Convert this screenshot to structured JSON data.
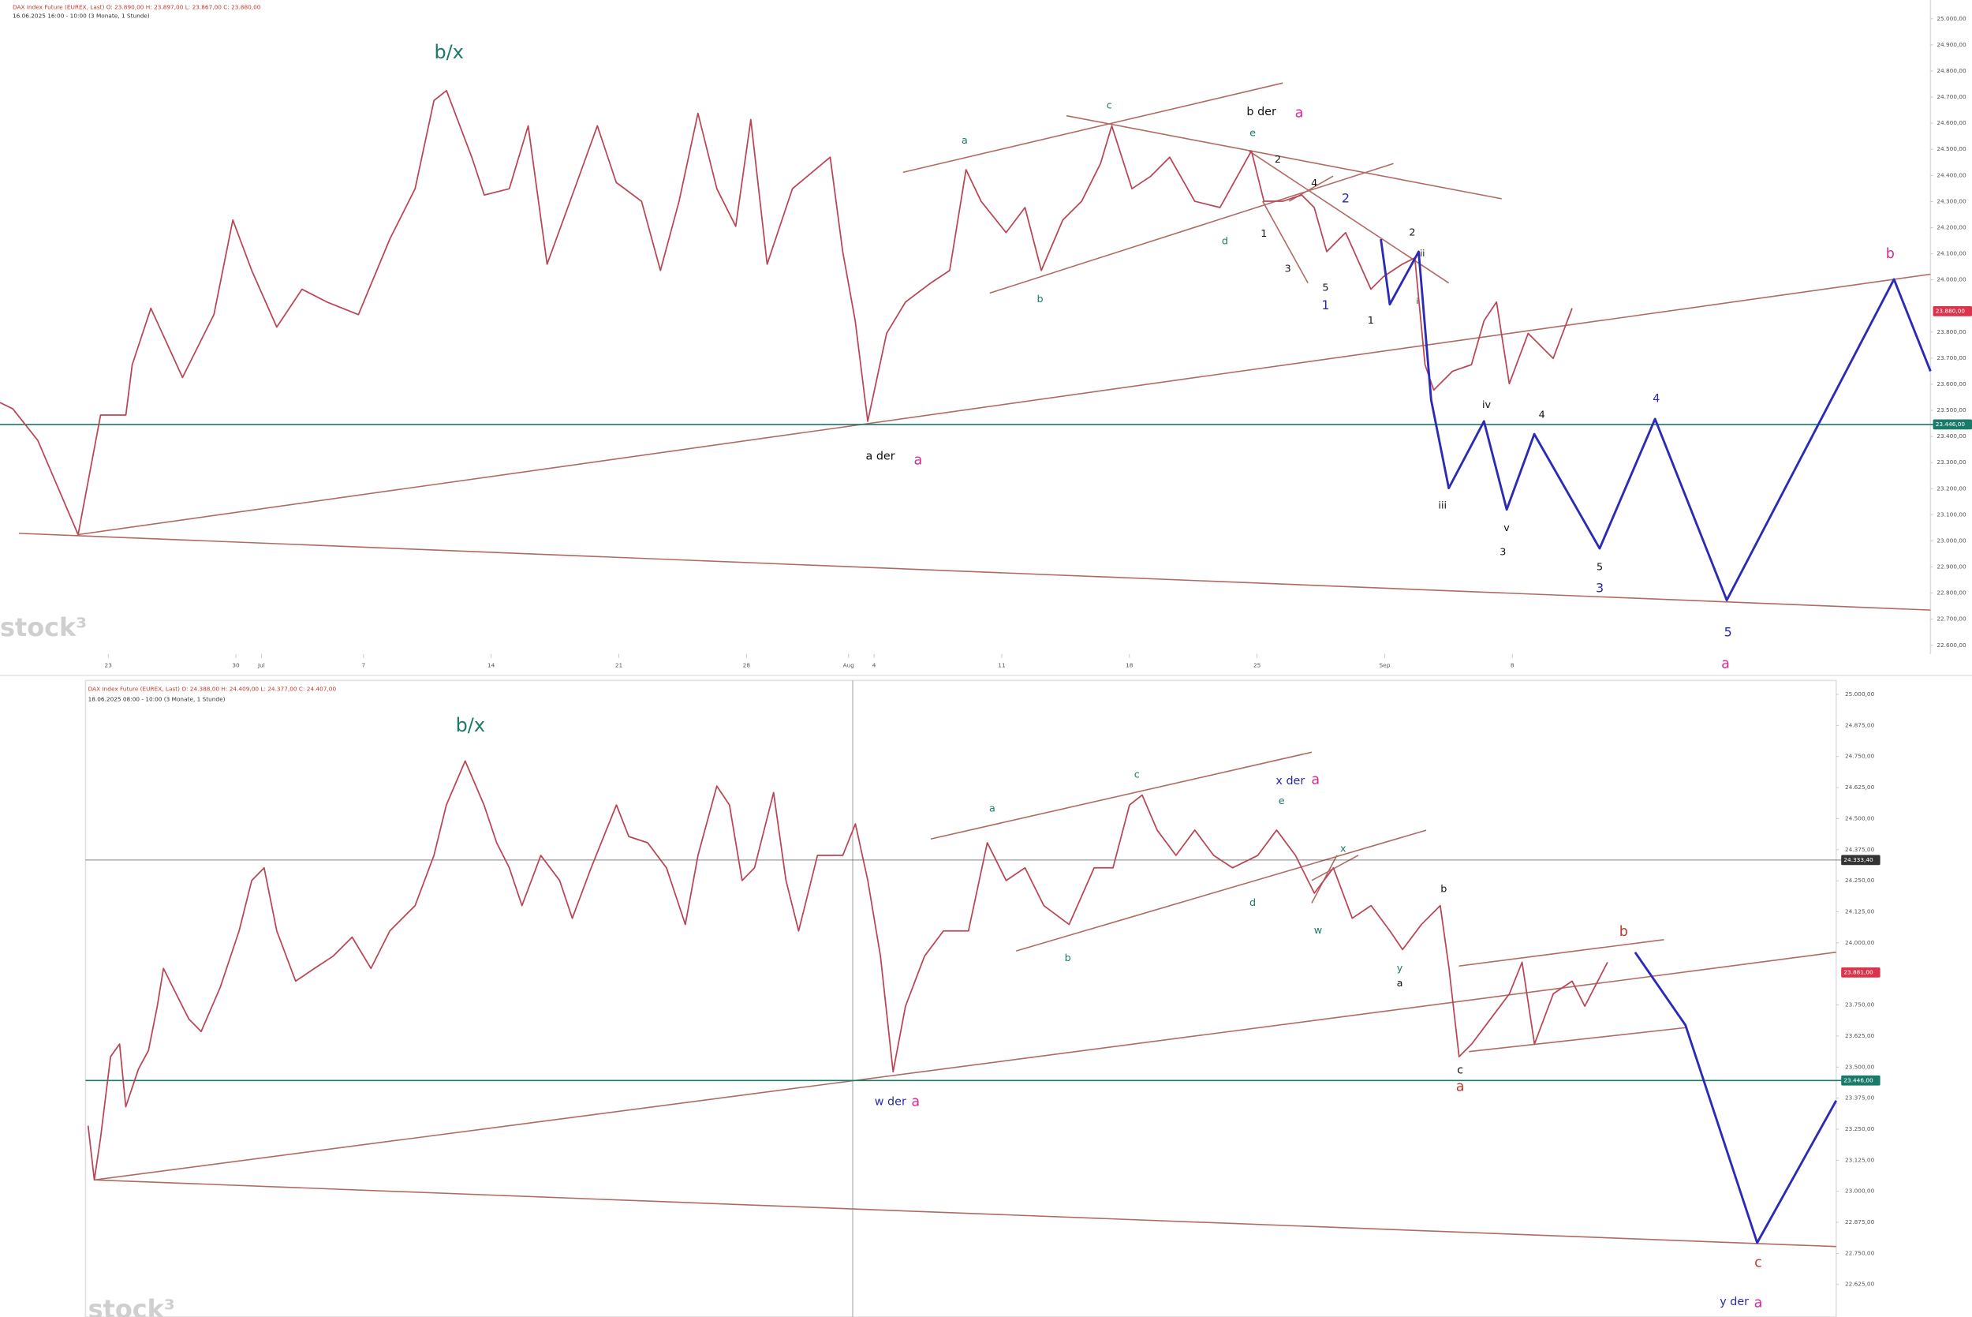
{
  "chart_data": [
    {
      "type": "line",
      "title": "DAX Index Future (EUREX, Last)   O: 23.890,00   H: 23.897,00   L: 23.867,00   C: 23.880,00",
      "subtitle": "16.06.2025 16:00 - 10:00  (3 Monate, 1 Stunde)",
      "watermark": "stock³",
      "xlim": [
        -4.24,
        71.38
      ],
      "ylim": [
        22494,
        25072
      ],
      "xticks": [
        {
          "value": 0,
          "label": "23"
        },
        {
          "value": 5,
          "label": "30"
        },
        {
          "value": 6,
          "label": "Jul"
        },
        {
          "value": 10,
          "label": "7"
        },
        {
          "value": 15,
          "label": "14"
        },
        {
          "value": 20,
          "label": "21"
        },
        {
          "value": 25,
          "label": "28"
        },
        {
          "value": 29,
          "label": "Aug"
        },
        {
          "value": 30,
          "label": "4"
        },
        {
          "value": 35,
          "label": "11"
        },
        {
          "value": 40,
          "label": "18"
        },
        {
          "value": 45,
          "label": "25"
        },
        {
          "value": 50,
          "label": "Sep"
        },
        {
          "value": 55,
          "label": "8"
        }
      ],
      "yticks": [
        {
          "value": 25000,
          "label": "25.000,00"
        },
        {
          "value": 24900,
          "label": "24.900,00"
        },
        {
          "value": 24800,
          "label": "24.800,00"
        },
        {
          "value": 24700,
          "label": "24.700,00"
        },
        {
          "value": 24600,
          "label": "24.600,00"
        },
        {
          "value": 24500,
          "label": "24.500,00"
        },
        {
          "value": 24400,
          "label": "24.400,00"
        },
        {
          "value": 24300,
          "label": "24.300,00"
        },
        {
          "value": 24200,
          "label": "24.200,00"
        },
        {
          "value": 24100,
          "label": "24.100,00"
        },
        {
          "value": 24000,
          "label": "24.000,00"
        },
        {
          "value": 23800,
          "label": "23.800,00"
        },
        {
          "value": 23700,
          "label": "23.700,00"
        },
        {
          "value": 23600,
          "label": "23.600,00"
        },
        {
          "value": 23500,
          "label": "23.500,00"
        },
        {
          "value": 23400,
          "label": "23.400,00"
        },
        {
          "value": 23300,
          "label": "23.300,00"
        },
        {
          "value": 23200,
          "label": "23.200,00"
        },
        {
          "value": 23100,
          "label": "23.100,00"
        },
        {
          "value": 23000,
          "label": "23.000,00"
        },
        {
          "value": 22900,
          "label": "22.900,00"
        },
        {
          "value": 22800,
          "label": "22.800,00"
        },
        {
          "value": 22700,
          "label": "22.700,00"
        },
        {
          "value": 22600,
          "label": "22.600,00"
        }
      ],
      "levels": [
        {
          "value": 23880,
          "label": "23.880,00",
          "color": "#d9344b",
          "line": false
        },
        {
          "value": 23446,
          "label": "23.446,00",
          "color": "#1a7a6a",
          "line": true
        }
      ],
      "series": [
        {
          "color": "#b94657",
          "x": [
            -4.24,
            -3.74,
            -2.76,
            -1.18,
            -0.3,
            0.69,
            0.94,
            1.67,
            2.91,
            4.14,
            4.88,
            5.62,
            6.6,
            7.59,
            8.57,
            9.8,
            11.03,
            12.02,
            12.76,
            13.25,
            14.24,
            14.73,
            15.71,
            16.45,
            17.19,
            18.18,
            19.16,
            19.9,
            20.89,
            21.63,
            22.36,
            23.1,
            23.84,
            24.58,
            25.17,
            25.81,
            26.8,
            28.28,
            28.77,
            29.26,
            29.75,
            30.49,
            31.23,
            32.22,
            32.96,
            33.6,
            34.19,
            35.17,
            35.91,
            36.55,
            37.39,
            38.13,
            38.87,
            39.31,
            40.1,
            40.84,
            41.58,
            42.56,
            43.55,
            44.78,
            45.27,
            46.01,
            46.75,
            47.24,
            47.73,
            48.47,
            49.46,
            49.95,
            50.69,
            51.18,
            51.58,
            51.92,
            52.66,
            53.4,
            53.89,
            54.38,
            54.88,
            55.62,
            56.6,
            57.34
          ],
          "values": [
            23530,
            23506,
            23385,
            23024,
            23482,
            23482,
            23675,
            23891,
            23626,
            23867,
            24229,
            24036,
            23819,
            23964,
            23915,
            23867,
            24156,
            24349,
            24687,
            24725,
            24470,
            24325,
            24349,
            24590,
            24060,
            24325,
            24590,
            24373,
            24301,
            24036,
            24301,
            24638,
            24349,
            24205,
            24614,
            24060,
            24349,
            24470,
            24108,
            23843,
            23458,
            23795,
            23915,
            23988,
            24036,
            24422,
            24301,
            24181,
            24277,
            24036,
            24229,
            24301,
            24446,
            24590,
            24349,
            24397,
            24470,
            24301,
            24277,
            24494,
            24301,
            24301,
            24325,
            24277,
            24108,
            24181,
            23964,
            24012,
            24060,
            24084,
            23675,
            23578,
            23650,
            23675,
            23843,
            23915,
            23602,
            23795,
            23699,
            23891
          ]
        },
        {
          "color": "#2b2bb5",
          "x": [
            49.85,
            50.2,
            51.33,
            51.82,
            52.51,
            53.89,
            54.78,
            55.86,
            58.42,
            60.59,
            63.4,
            69.95,
            71.38
          ],
          "values": [
            24156,
            23906,
            24108,
            23540,
            23202,
            23458,
            23120,
            23409,
            22971,
            23467,
            22773,
            24002,
            23650
          ]
        }
      ],
      "annotations": [
        "b/x",
        "a",
        "c",
        "b der",
        "a",
        "e",
        "2",
        "4",
        "2",
        "2",
        "ii",
        "d",
        "1",
        "3",
        "5",
        "1",
        "i",
        "1",
        "b",
        "b",
        "iv",
        "4",
        "4",
        "a der",
        "a",
        "iii",
        "v",
        "3",
        "5",
        "3",
        "5",
        "a"
      ]
    },
    {
      "type": "line",
      "title": "DAX Index Future (EUREX, Last)   O: 24.388,00   H: 24.409,00   L: 24.377,00   C: 24.407,00",
      "subtitle": "18.06.2025 08:00 - 10:00  (3 Monate, 1 Stunde)",
      "watermark": "stock³",
      "xlim": [
        -1.52,
        66.31
      ],
      "ylim": [
        22494,
        25056
      ],
      "yticks": [
        {
          "value": 25000,
          "label": "25.000,00"
        },
        {
          "value": 24875,
          "label": "24.875,00"
        },
        {
          "value": 24750,
          "label": "24.750,00"
        },
        {
          "value": 24625,
          "label": "24.625,00"
        },
        {
          "value": 24500,
          "label": "24.500,00"
        },
        {
          "value": 24375,
          "label": "24.375,00"
        },
        {
          "value": 24250,
          "label": "24.250,00"
        },
        {
          "value": 24125,
          "label": "24.125,00"
        },
        {
          "value": 24000,
          "label": "24.000,00"
        },
        {
          "value": 23750,
          "label": "23.750,00"
        },
        {
          "value": 23625,
          "label": "23.625,00"
        },
        {
          "value": 23500,
          "label": "23.500,00"
        },
        {
          "value": 23375,
          "label": "23.375,00"
        },
        {
          "value": 23250,
          "label": "23.250,00"
        },
        {
          "value": 23125,
          "label": "23.125,00"
        },
        {
          "value": 23000,
          "label": "23.000,00"
        },
        {
          "value": 22875,
          "label": "22.875,00"
        },
        {
          "value": 22750,
          "label": "22.750,00"
        },
        {
          "value": 22625,
          "label": "22.625,00"
        }
      ],
      "levels": [
        {
          "value": 24333.4,
          "label": "24.333,40",
          "color": "#333333",
          "line": true
        },
        {
          "value": 23881,
          "label": "23.881,00",
          "color": "#d9344b",
          "line": false
        },
        {
          "value": 23446,
          "label": "23.446,00",
          "color": "#1a7a6a",
          "line": true
        }
      ],
      "series": [
        {
          "color": "#b94657",
          "x": [
            -1.42,
            -1.18,
            -0.94,
            -0.55,
            -0.2,
            0.04,
            0.53,
            0.92,
            1.26,
            1.5,
            1.99,
            2.48,
            2.96,
            3.7,
            4.43,
            4.92,
            5.4,
            5.89,
            6.62,
            7.35,
            8.08,
            8.81,
            9.54,
            10.27,
            11.25,
            11.98,
            12.46,
            13.19,
            13.92,
            14.41,
            14.9,
            15.39,
            16.12,
            16.85,
            17.34,
            18.07,
            19.05,
            19.53,
            20.26,
            20.99,
            21.72,
            22.21,
            22.94,
            23.43,
            23.92,
            24.4,
            25.14,
            25.62,
            26.11,
            26.84,
            27.82,
            28.31,
            28.79,
            29.28,
            29.77,
            30.25,
            30.99,
            31.72,
            32.69,
            33.42,
            34.15,
            34.88,
            35.61,
            36.59,
            37.56,
            38.29,
            38.93,
            39.42,
            40.0,
            40.73,
            41.46,
            42.19,
            42.92,
            43.9,
            44.63,
            45.36,
            46.09,
            46.83,
            47.56,
            48.29,
            49.02,
            49.51,
            50.24,
            50.97,
            51.31,
            51.7,
            52.19,
            52.92,
            53.65,
            54.14,
            54.62,
            55.35,
            56.08,
            56.57,
            57.45
          ],
          "values": [
            23264,
            23046,
            23213,
            23542,
            23593,
            23340,
            23492,
            23567,
            23745,
            23897,
            23795,
            23694,
            23643,
            23821,
            24048,
            24251,
            24302,
            24048,
            23846,
            23897,
            23947,
            24023,
            23897,
            24048,
            24150,
            24352,
            24555,
            24732,
            24555,
            24403,
            24302,
            24150,
            24352,
            24251,
            24099,
            24302,
            24555,
            24428,
            24403,
            24302,
            24074,
            24352,
            24631,
            24555,
            24251,
            24302,
            24605,
            24251,
            24048,
            24352,
            24352,
            24479,
            24251,
            23947,
            23481,
            23745,
            23947,
            24048,
            24048,
            24403,
            24251,
            24302,
            24150,
            24074,
            24302,
            24302,
            24555,
            24595,
            24454,
            24352,
            24454,
            24352,
            24302,
            24352,
            24454,
            24352,
            24200,
            24302,
            24099,
            24150,
            24048,
            23973,
            24074,
            24150,
            23897,
            23542,
            23593,
            23694,
            23795,
            23922,
            23593,
            23795,
            23846,
            23745,
            23922
          ]
        },
        {
          "color": "#2b2bb5",
          "x": [
            58.52,
            60.47,
            63.25,
            66.31
          ],
          "values": [
            23962,
            23669,
            22793,
            23365
          ]
        }
      ],
      "annotations": [
        "b/x",
        "a",
        "c",
        "x der",
        "a",
        "e",
        "x",
        "d",
        "w",
        "b",
        "b",
        "y",
        "a",
        "b",
        "c",
        "a",
        "w der",
        "a",
        "c",
        "y der",
        "a"
      ]
    }
  ]
}
